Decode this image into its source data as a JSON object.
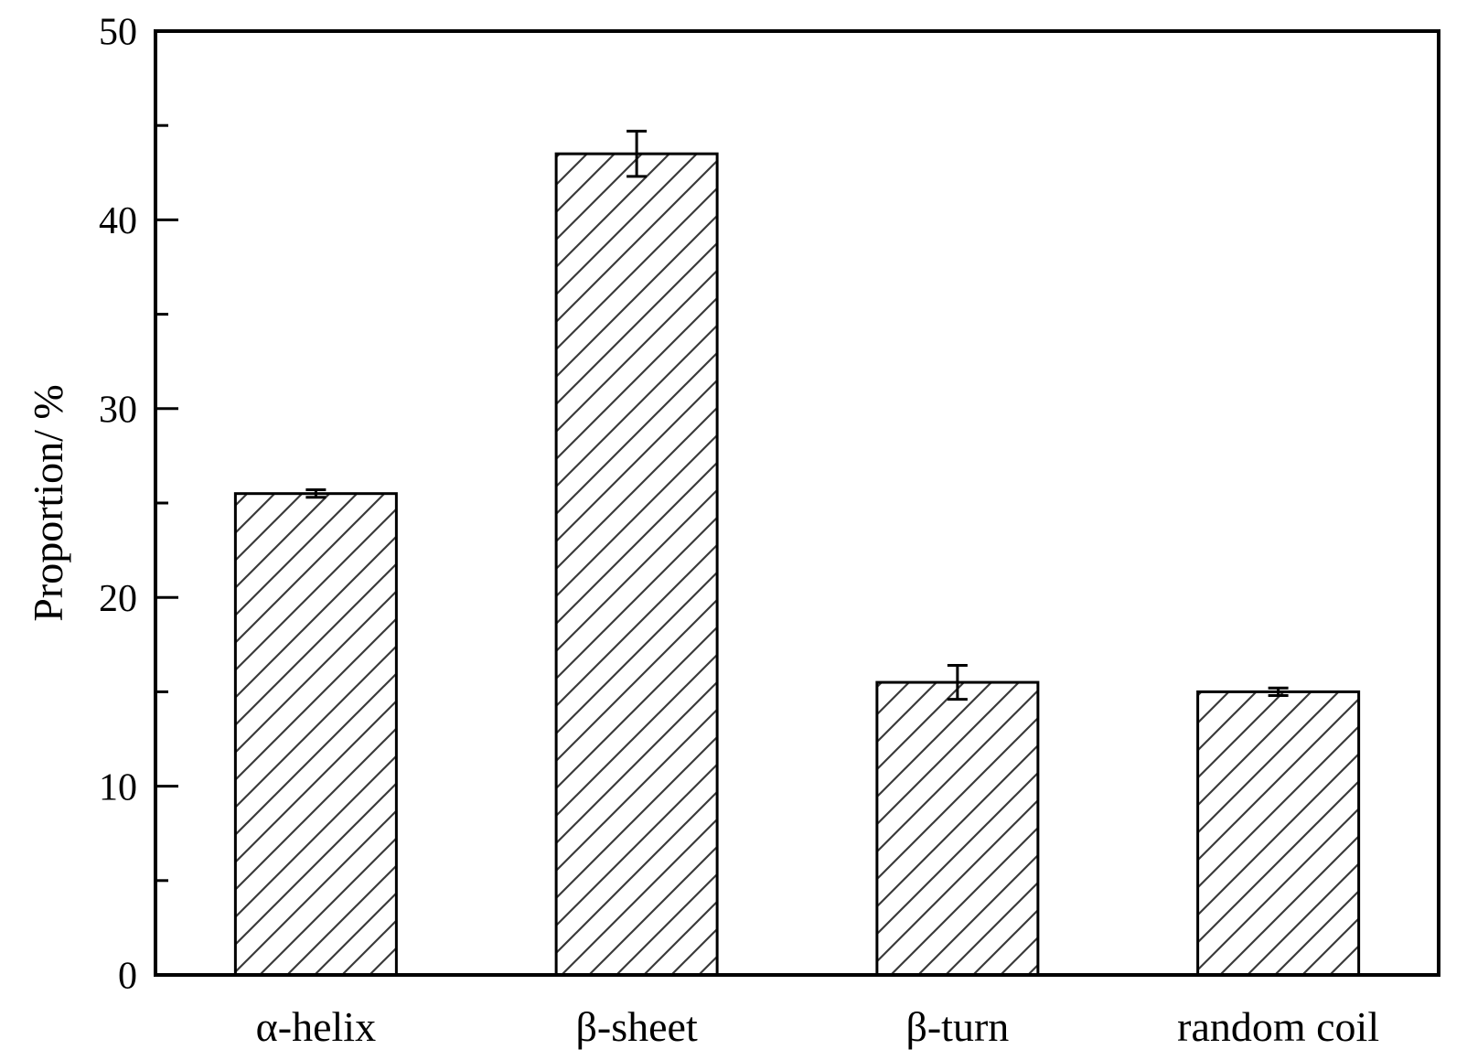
{
  "chart_data": {
    "type": "bar",
    "title": "",
    "ylabel": "Proportion/ %",
    "xlabel": "",
    "categories": [
      "α-helix",
      "β-sheet",
      "β-turn",
      "random coil"
    ],
    "values": [
      25.5,
      43.5,
      15.5,
      15.0
    ],
    "error_bars": [
      0.2,
      1.2,
      0.9,
      0.2
    ],
    "ylim": [
      0,
      50
    ],
    "yticks_major": [
      0,
      10,
      20,
      30,
      40,
      50
    ],
    "yticks_minor": [
      5,
      15,
      25,
      35,
      45
    ],
    "grid": false,
    "legend_position": "none",
    "bar_fill": "#ffffff",
    "bar_hatch": "forward-diagonal",
    "hatch_color": "#3b3b3b",
    "bar_edge_color": "#000000",
    "axis_color": "#000000",
    "text_color": "#000000",
    "background_color": "#ffffff"
  }
}
